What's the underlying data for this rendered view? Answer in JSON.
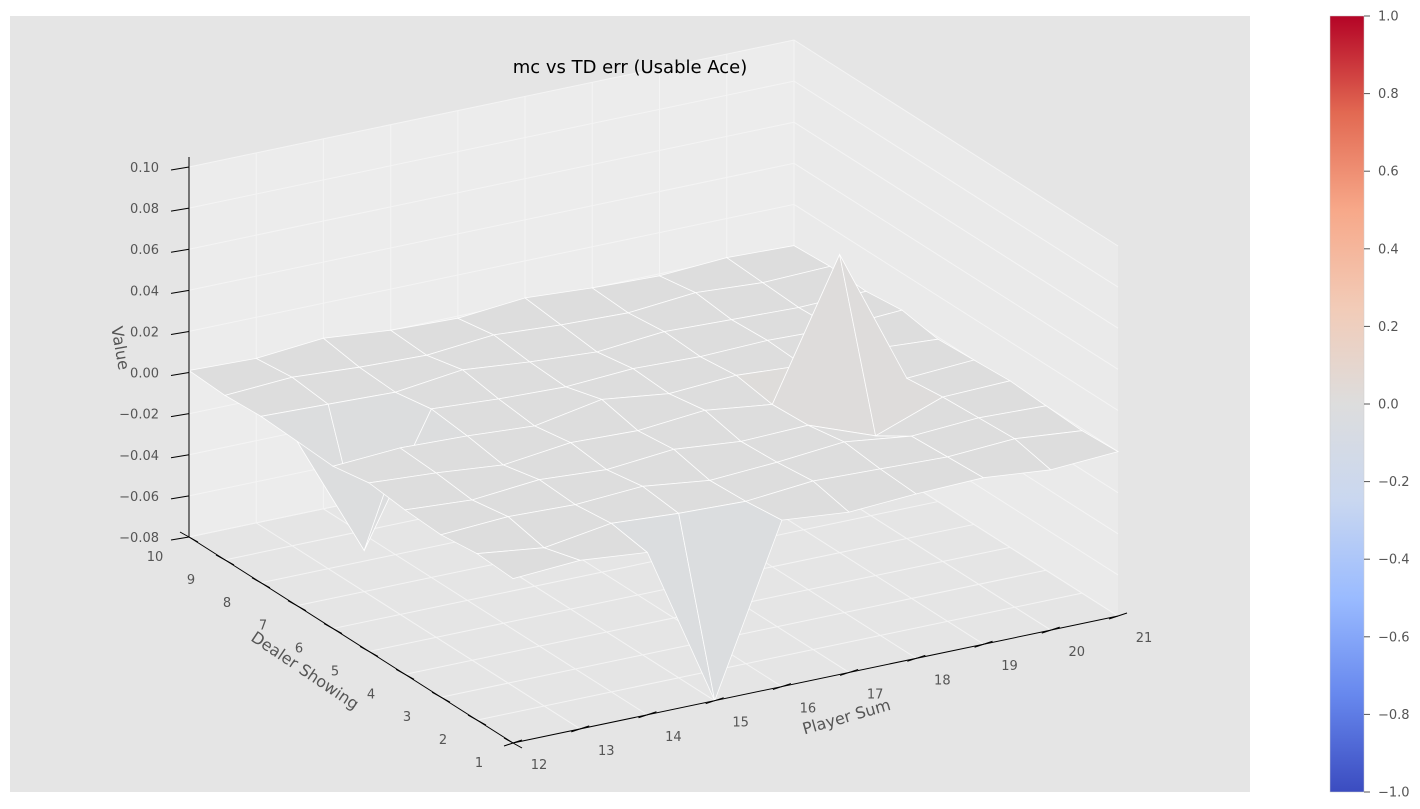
{
  "chart_data": {
    "type": "surface3d",
    "title": "mc vs TD err (Usable Ace)",
    "xlabel": "Player Sum",
    "ylabel": "Dealer Showing",
    "zlabel": "Value",
    "x": [
      12,
      13,
      14,
      15,
      16,
      17,
      18,
      19,
      20,
      21
    ],
    "y": [
      1,
      2,
      3,
      4,
      5,
      6,
      7,
      8,
      9,
      10
    ],
    "x_tick_labels": [
      "12",
      "13",
      "14",
      "15",
      "16",
      "17",
      "18",
      "19",
      "20",
      "21"
    ],
    "y_tick_labels": [
      "1",
      "2",
      "3",
      "4",
      "5",
      "6",
      "7",
      "8",
      "9",
      "10"
    ],
    "zlim": [
      -0.08,
      0.1
    ],
    "z_tick_labels": [
      "−0.08",
      "−0.06",
      "−0.04",
      "−0.02",
      "0.00",
      "0.02",
      "0.04",
      "0.06",
      "0.08",
      "0.10"
    ],
    "z_ticks": [
      -0.08,
      -0.06,
      -0.04,
      -0.02,
      0.0,
      0.02,
      0.04,
      0.06,
      0.08,
      0.1
    ],
    "z": [
      [
        0.0,
        0.002,
        -0.001,
        -0.08,
        0.001,
        -0.002,
        0.0,
        0.001,
        -0.002,
        0.0
      ],
      [
        0.001,
        -0.003,
        0.002,
        0.0,
        -0.001,
        0.002,
        0.001,
        0.0,
        0.002,
        -0.001
      ],
      [
        -0.001,
        0.001,
        0.0,
        0.002,
        -0.002,
        0.0,
        0.003,
        -0.001,
        0.001,
        0.0
      ],
      [
        0.0,
        -0.002,
        0.001,
        -0.001,
        0.002,
        -0.001,
        0.0,
        -0.012,
        0.0,
        0.001
      ],
      [
        0.002,
        0.0,
        -0.003,
        0.001,
        0.0,
        0.003,
        -0.001,
        0.065,
        -0.002,
        0.0
      ],
      [
        -0.001,
        0.001,
        0.0,
        -0.002,
        0.004,
        0.0,
        0.002,
        0.0,
        0.001,
        -0.001
      ],
      [
        0.0,
        -0.06,
        0.002,
        0.0,
        -0.001,
        0.001,
        0.0,
        0.001,
        0.0,
        0.002
      ],
      [
        0.001,
        0.0,
        -0.001,
        0.003,
        0.0,
        -0.002,
        0.001,
        0.0,
        -0.001,
        0.0
      ],
      [
        0.0,
        0.002,
        0.0,
        -0.001,
        0.002,
        0.0,
        -0.001,
        0.002,
        0.0,
        0.001
      ],
      [
        0.001,
        0.0,
        0.003,
        0.0,
        -0.001,
        0.002,
        0.0,
        -0.001,
        0.001,
        0.0
      ]
    ],
    "colormap": "coolwarm",
    "colorbar": {
      "range": [
        -1.0,
        1.0
      ],
      "ticks": [
        -1.0,
        -0.8,
        -0.6,
        -0.4,
        -0.2,
        0.0,
        0.2,
        0.4,
        0.6,
        0.8,
        1.0
      ],
      "tick_labels": [
        "−1.0",
        "−0.8",
        "−0.6",
        "−0.4",
        "−0.2",
        "0.0",
        "0.2",
        "0.4",
        "0.6",
        "0.8",
        "1.0"
      ]
    },
    "style": {
      "pane_color": "#e5e5e5",
      "back_pane_color": "#ececec",
      "grid_color": "#f4f4f4",
      "surface_edge_color": "#ffffff",
      "axis_line_color": "#000000",
      "colormap_stops": [
        "#3b4cc0",
        "#6788ee",
        "#9abbff",
        "#c9d7f0",
        "#dddddd",
        "#f2cbb7",
        "#f7a889",
        "#e26952",
        "#b40426"
      ]
    }
  }
}
